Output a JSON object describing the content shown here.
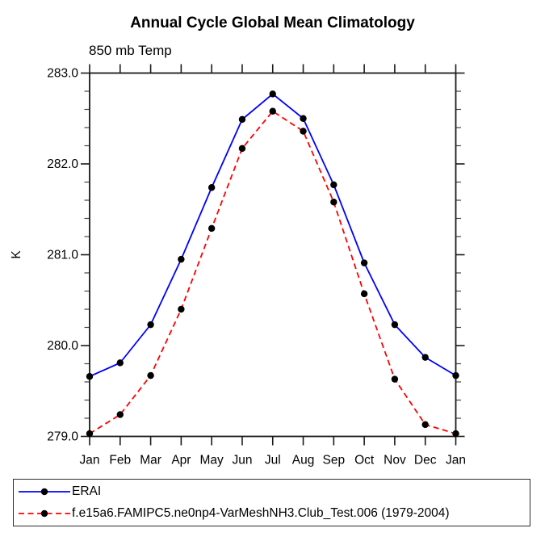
{
  "page": {
    "background": "#ffffff",
    "text_color": "#000000",
    "axis_color": "#1a1a1a"
  },
  "chart_data": {
    "type": "line",
    "title": "Annual Cycle Global Mean Climatology",
    "subtitle": "850 mb Temp",
    "ylabel": "K",
    "categories": [
      "Jan",
      "Feb",
      "Mar",
      "Apr",
      "May",
      "Jun",
      "Jul",
      "Aug",
      "Sep",
      "Oct",
      "Nov",
      "Dec",
      "Jan"
    ],
    "ylim": [
      279.0,
      283.0
    ],
    "yticks_major": [
      279.0,
      280.0,
      281.0,
      282.0,
      283.0
    ],
    "ytick_labels": [
      "279.0",
      "280.0",
      "281.0",
      "282.0",
      "283.0"
    ],
    "minor_tick_interval": 0.2,
    "grid": false,
    "legend_position": "bottom-left",
    "series": [
      {
        "name": "ERAI",
        "color": "#0000ff",
        "style": "solid",
        "marker": "circle",
        "marker_color": "#000000",
        "values": [
          279.66,
          279.81,
          280.23,
          280.95,
          281.74,
          282.49,
          282.77,
          282.5,
          281.77,
          280.91,
          280.23,
          279.87,
          279.67
        ]
      },
      {
        "name": "f.e15a6.FAMIPC5.ne0np4-VarMeshNH3.Club_Test.006 (1979-2004)",
        "color": "#ff0000",
        "style": "dashed",
        "marker": "circle",
        "marker_color": "#000000",
        "values": [
          279.03,
          279.24,
          279.67,
          280.4,
          281.29,
          282.17,
          282.58,
          282.36,
          281.58,
          280.57,
          279.63,
          279.13,
          279.03
        ]
      }
    ]
  }
}
